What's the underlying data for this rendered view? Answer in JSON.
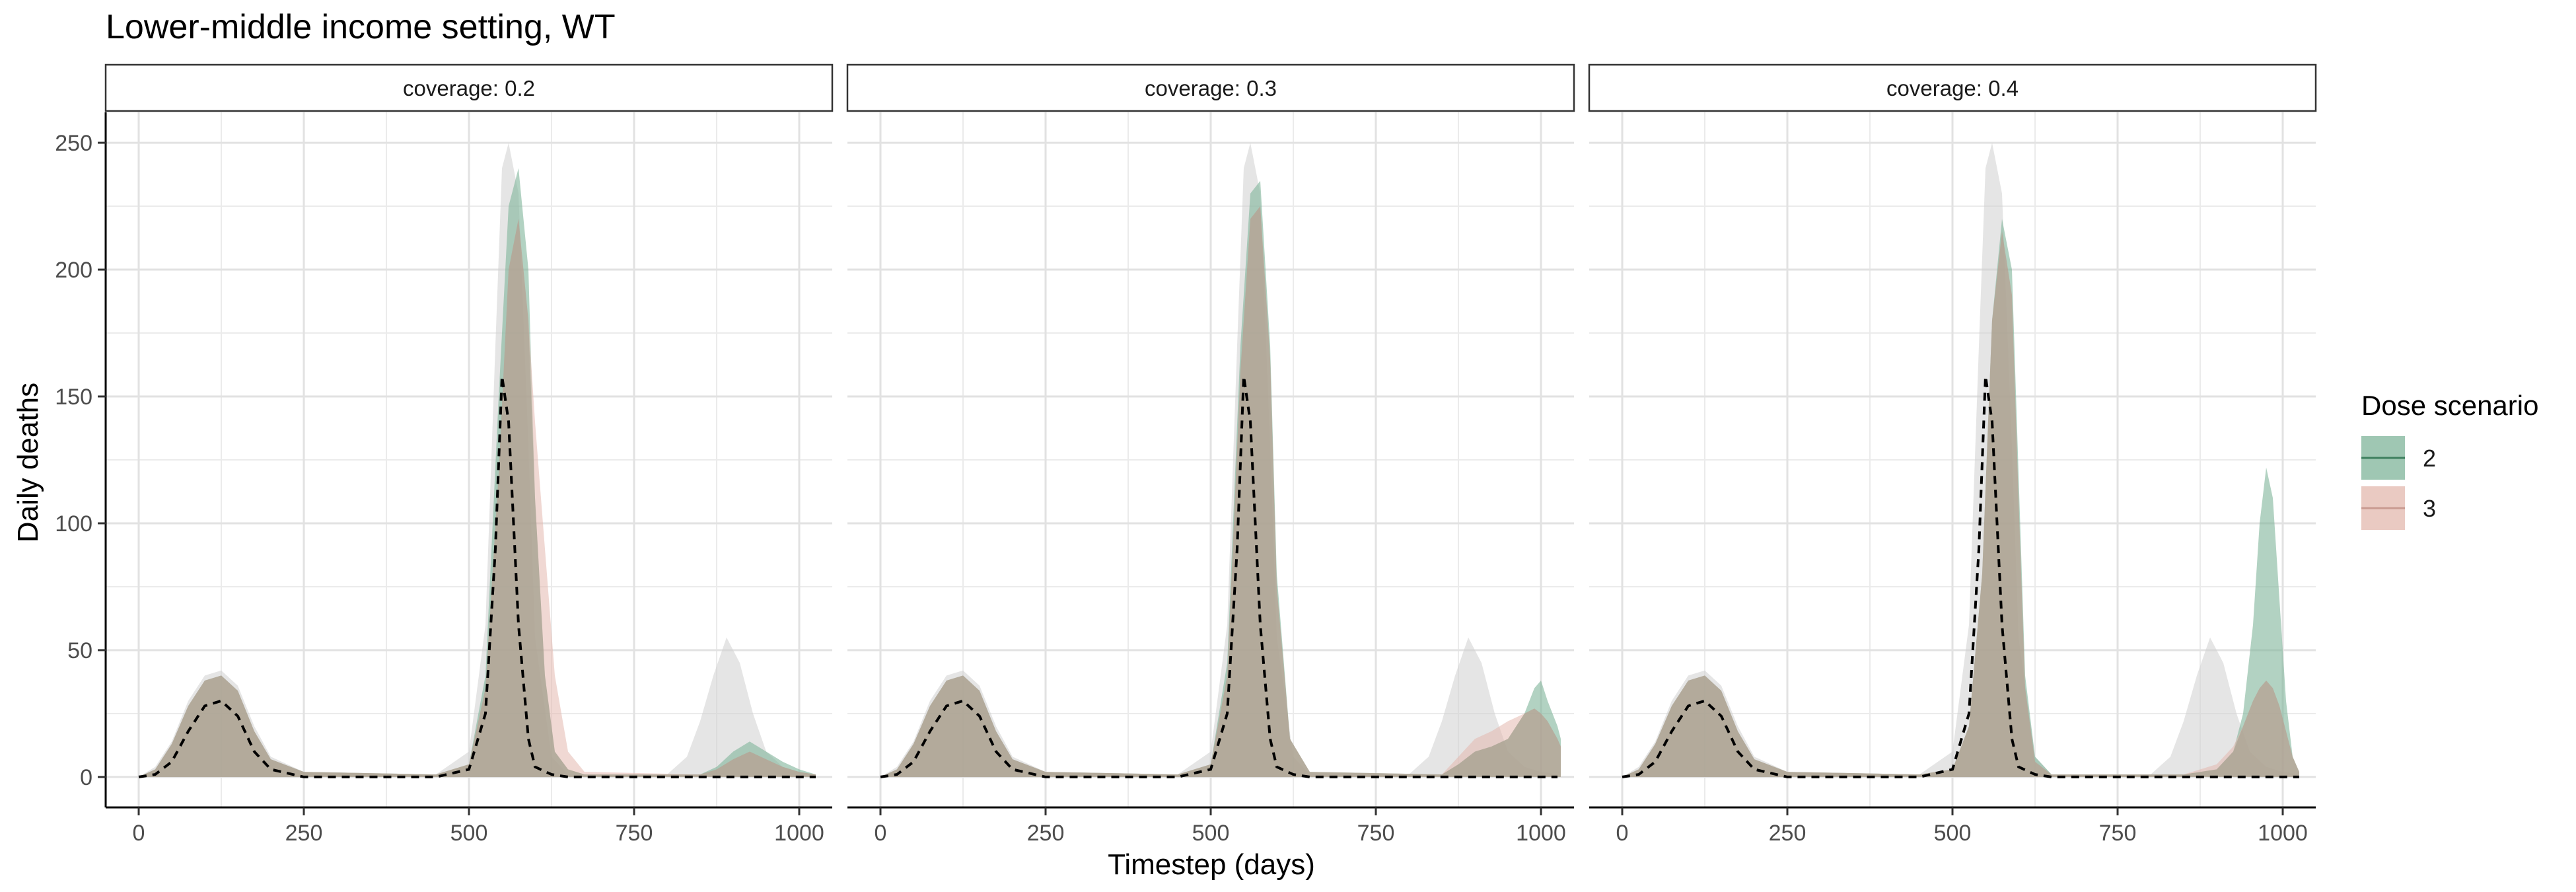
{
  "chart_data": {
    "type": "area",
    "title": "Lower-middle income setting, WT",
    "xlabel": "Timestep (days)",
    "ylabel": "Daily deaths",
    "xlim": [
      -50,
      1050
    ],
    "ylim": [
      -12,
      262
    ],
    "x_ticks": [
      0,
      250,
      500,
      750,
      1000
    ],
    "y_ticks": [
      0,
      50,
      100,
      150,
      200,
      250
    ],
    "grid": true,
    "legend": {
      "title": "Dose scenario",
      "position": "right",
      "entries": [
        {
          "label": "2",
          "color": "#7fb49a"
        },
        {
          "label": "3",
          "color": "#e3b8ae"
        }
      ]
    },
    "colors": {
      "reference_band": "#cfcfcf",
      "reference_line": "#000000",
      "dose_2": "#7fb49a",
      "dose_3": "#e3b8ae"
    },
    "panels": [
      {
        "label": "coverage: 0.2",
        "reference_band": {
          "x": [
            0,
            25,
            50,
            75,
            100,
            125,
            150,
            175,
            200,
            250,
            450,
            500,
            525,
            540,
            550,
            560,
            575,
            590,
            600,
            625,
            650,
            800,
            830,
            850,
            870,
            890,
            910,
            930,
            950,
            975,
            1000,
            1025
          ],
          "upper": [
            0,
            4,
            14,
            30,
            40,
            42,
            36,
            20,
            8,
            2,
            1,
            10,
            60,
            170,
            240,
            250,
            230,
            130,
            55,
            8,
            1,
            1,
            8,
            22,
            40,
            55,
            45,
            25,
            10,
            4,
            2,
            1
          ]
        },
        "reference_line": {
          "x": [
            0,
            25,
            50,
            75,
            100,
            125,
            150,
            175,
            200,
            250,
            450,
            500,
            525,
            540,
            550,
            560,
            575,
            590,
            600,
            625,
            650,
            1025
          ],
          "y": [
            0,
            1,
            6,
            18,
            28,
            30,
            24,
            10,
            3,
            0,
            0,
            3,
            25,
            90,
            158,
            140,
            60,
            15,
            4,
            1,
            0,
            0
          ]
        },
        "series": [
          {
            "name": "2",
            "x": [
              0,
              25,
              50,
              75,
              100,
              125,
              150,
              175,
              200,
              250,
              450,
              500,
              525,
              545,
              560,
              575,
              590,
              600,
              615,
              630,
              650,
              675,
              850,
              875,
              900,
              925,
              950,
              975,
              1000,
              1025
            ],
            "upper": [
              0,
              3,
              13,
              28,
              38,
              40,
              34,
              18,
              7,
              2,
              1,
              5,
              40,
              150,
              225,
              240,
              200,
              110,
              40,
              10,
              3,
              1,
              1,
              4,
              10,
              14,
              10,
              6,
              3,
              1
            ]
          },
          {
            "name": "3",
            "x": [
              0,
              25,
              50,
              75,
              100,
              125,
              150,
              175,
              200,
              250,
              450,
              500,
              525,
              545,
              560,
              575,
              590,
              600,
              615,
              630,
              650,
              675,
              850,
              875,
              900,
              925,
              950,
              975,
              1000,
              1025
            ],
            "upper": [
              0,
              3,
              13,
              28,
              38,
              40,
              34,
              18,
              7,
              2,
              1,
              5,
              35,
              120,
              200,
              220,
              180,
              140,
              90,
              40,
              10,
              2,
              1,
              3,
              7,
              10,
              7,
              4,
              2,
              1
            ]
          }
        ]
      },
      {
        "label": "coverage: 0.3",
        "reference_band": {
          "x": [
            0,
            25,
            50,
            75,
            100,
            125,
            150,
            175,
            200,
            250,
            450,
            500,
            525,
            540,
            550,
            560,
            575,
            590,
            600,
            625,
            650,
            800,
            830,
            850,
            870,
            890,
            910,
            930,
            950,
            975,
            1000,
            1025
          ],
          "upper": [
            0,
            4,
            14,
            30,
            40,
            42,
            36,
            20,
            8,
            2,
            1,
            10,
            60,
            170,
            240,
            250,
            230,
            130,
            55,
            8,
            1,
            1,
            8,
            22,
            40,
            55,
            45,
            25,
            10,
            4,
            2,
            1
          ]
        },
        "reference_line": {
          "x": [
            0,
            25,
            50,
            75,
            100,
            125,
            150,
            175,
            200,
            250,
            450,
            500,
            525,
            540,
            550,
            560,
            575,
            590,
            600,
            625,
            650,
            1025
          ],
          "y": [
            0,
            1,
            6,
            18,
            28,
            30,
            24,
            10,
            3,
            0,
            0,
            3,
            25,
            90,
            158,
            140,
            60,
            15,
            4,
            1,
            0,
            0
          ]
        },
        "series": [
          {
            "name": "2",
            "x": [
              0,
              25,
              50,
              75,
              100,
              125,
              150,
              175,
              200,
              250,
              450,
              500,
              525,
              545,
              560,
              575,
              590,
              600,
              620,
              650,
              850,
              875,
              900,
              925,
              950,
              975,
              990,
              1000,
              1010,
              1025,
              1030
            ],
            "upper": [
              0,
              3,
              13,
              28,
              38,
              40,
              34,
              18,
              7,
              2,
              1,
              5,
              45,
              170,
              230,
              235,
              170,
              80,
              15,
              2,
              1,
              5,
              10,
              12,
              15,
              25,
              35,
              38,
              30,
              20,
              15
            ]
          },
          {
            "name": "3",
            "x": [
              0,
              25,
              50,
              75,
              100,
              125,
              150,
              175,
              200,
              250,
              450,
              500,
              525,
              545,
              560,
              575,
              590,
              600,
              620,
              650,
              850,
              875,
              900,
              925,
              950,
              975,
              990,
              1000,
              1010,
              1025,
              1030
            ],
            "upper": [
              0,
              3,
              13,
              28,
              38,
              40,
              34,
              18,
              7,
              2,
              1,
              5,
              40,
              160,
              220,
              225,
              165,
              75,
              15,
              2,
              1,
              8,
              15,
              18,
              22,
              25,
              27,
              25,
              22,
              15,
              12
            ]
          }
        ]
      },
      {
        "label": "coverage: 0.4",
        "reference_band": {
          "x": [
            0,
            25,
            50,
            75,
            100,
            125,
            150,
            175,
            200,
            250,
            450,
            500,
            525,
            540,
            550,
            560,
            575,
            590,
            600,
            625,
            650,
            800,
            830,
            850,
            870,
            890,
            910,
            930,
            950,
            975,
            1000,
            1025
          ],
          "upper": [
            0,
            4,
            14,
            30,
            40,
            42,
            36,
            20,
            8,
            2,
            1,
            10,
            60,
            170,
            240,
            250,
            230,
            130,
            55,
            8,
            1,
            1,
            8,
            22,
            40,
            55,
            45,
            25,
            10,
            4,
            2,
            1
          ]
        },
        "reference_line": {
          "x": [
            0,
            25,
            50,
            75,
            100,
            125,
            150,
            175,
            200,
            250,
            450,
            500,
            525,
            540,
            550,
            560,
            575,
            590,
            600,
            625,
            650,
            1025
          ],
          "y": [
            0,
            1,
            6,
            18,
            28,
            30,
            24,
            10,
            3,
            0,
            0,
            3,
            25,
            90,
            158,
            140,
            60,
            15,
            4,
            1,
            0,
            0
          ]
        },
        "series": [
          {
            "name": "2",
            "x": [
              0,
              25,
              50,
              75,
              100,
              125,
              150,
              175,
              200,
              250,
              450,
              500,
              525,
              545,
              560,
              575,
              590,
              600,
              610,
              625,
              650,
              850,
              900,
              925,
              940,
              955,
              965,
              975,
              985,
              995,
              1005,
              1015,
              1025
            ],
            "upper": [
              0,
              3,
              13,
              28,
              38,
              40,
              34,
              18,
              7,
              2,
              1,
              3,
              20,
              80,
              180,
              220,
              200,
              120,
              40,
              8,
              1,
              1,
              3,
              10,
              25,
              60,
              100,
              122,
              110,
              70,
              30,
              8,
              2
            ]
          },
          {
            "name": "3",
            "x": [
              0,
              25,
              50,
              75,
              100,
              125,
              150,
              175,
              200,
              250,
              450,
              500,
              525,
              545,
              560,
              575,
              590,
              600,
              610,
              625,
              650,
              850,
              900,
              925,
              940,
              955,
              965,
              975,
              985,
              995,
              1005,
              1015,
              1025
            ],
            "upper": [
              0,
              3,
              13,
              28,
              38,
              40,
              34,
              18,
              7,
              2,
              1,
              3,
              20,
              80,
              180,
              215,
              190,
              110,
              35,
              6,
              1,
              1,
              5,
              12,
              20,
              30,
              35,
              38,
              35,
              28,
              18,
              8,
              2
            ]
          }
        ]
      }
    ]
  }
}
